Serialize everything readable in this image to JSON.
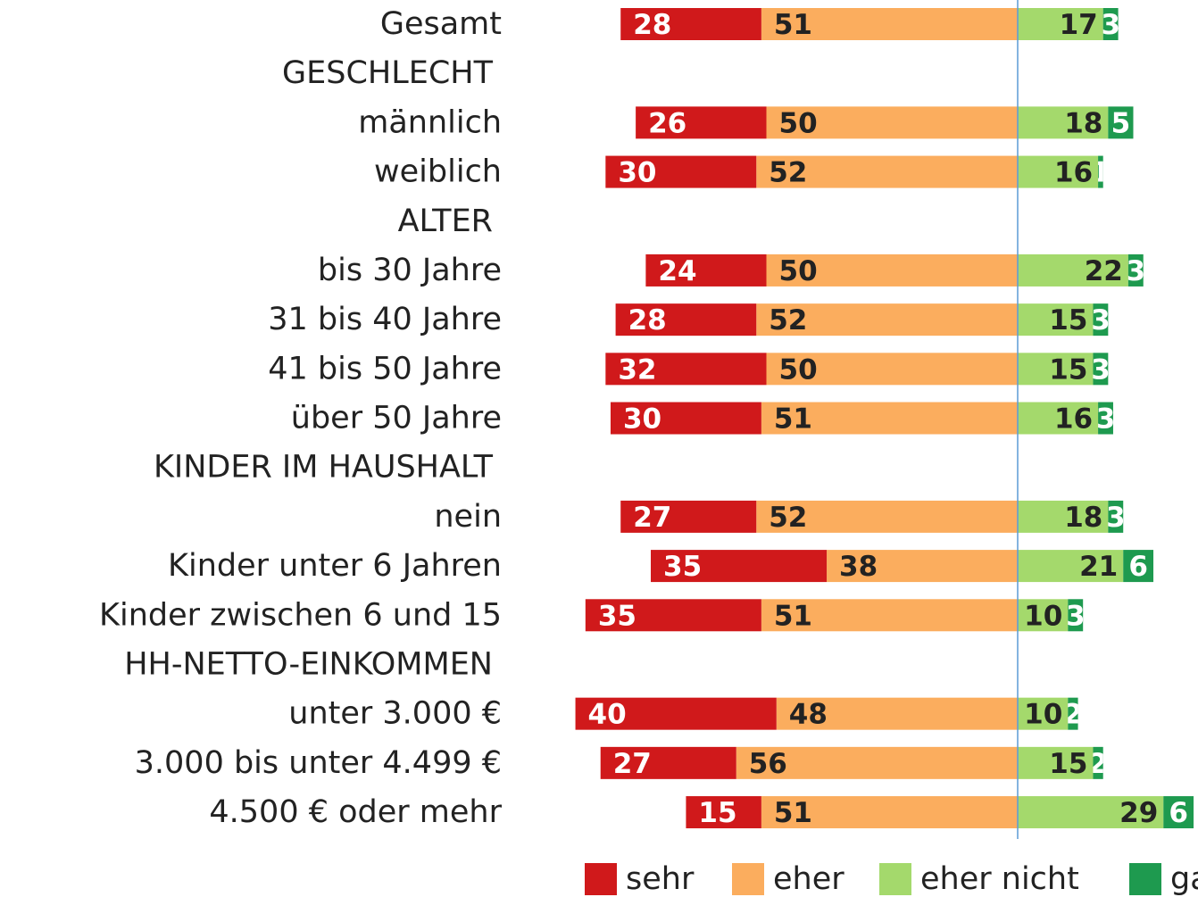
{
  "chart_data": {
    "type": "diverging-bar",
    "categories": [
      "Gesamt",
      "GESCHLECHT",
      "männlich",
      "weiblich",
      "ALTER",
      "bis 30 Jahre",
      "31 bis 40 Jahre",
      "41 bis 50 Jahre",
      "über 50 Jahre",
      "KINDER IM HAUSHALT",
      "nein",
      "Kinder unter 6 Jahren",
      "Kinder zwischen 6 und 15",
      "HH-NETTO-EINKOMMEN",
      "unter 3.000 €",
      "3.000 bis unter 4.499 €",
      "4.500 € oder mehr"
    ],
    "series": [
      {
        "name": "sehr",
        "color": "#d0191b",
        "side": "left",
        "values": [
          28,
          null,
          26,
          30,
          null,
          24,
          28,
          32,
          30,
          null,
          27,
          35,
          35,
          null,
          40,
          27,
          15
        ]
      },
      {
        "name": "eher",
        "color": "#fbad5e",
        "side": "left",
        "values": [
          51,
          null,
          50,
          52,
          null,
          50,
          52,
          50,
          51,
          null,
          52,
          38,
          51,
          null,
          48,
          56,
          51
        ]
      },
      {
        "name": "eher nicht",
        "color": "#a4d96c",
        "side": "right",
        "values": [
          17,
          null,
          18,
          16,
          null,
          22,
          15,
          15,
          16,
          null,
          18,
          21,
          10,
          null,
          10,
          15,
          29
        ]
      },
      {
        "name": "gar nicht",
        "color": "#1e9a4f",
        "side": "right",
        "values": [
          3,
          null,
          5,
          1,
          null,
          3,
          3,
          3,
          3,
          null,
          3,
          6,
          3,
          null,
          2,
          2,
          6
        ]
      }
    ],
    "legend": "bottom"
  }
}
